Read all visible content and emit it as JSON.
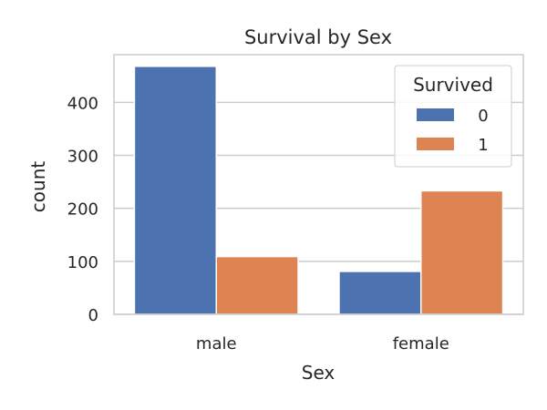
{
  "chart_data": {
    "type": "bar",
    "title": "Survival by Sex",
    "xlabel": "Sex",
    "ylabel": "count",
    "categories": [
      "male",
      "female"
    ],
    "ylim": [
      0,
      490
    ],
    "yticks": [
      0,
      100,
      200,
      300,
      400
    ],
    "grid": true,
    "legend": {
      "title": "Survived",
      "placement": "top-right"
    },
    "series": [
      {
        "name": "0",
        "color": "#4c72b0",
        "values": [
          468,
          81
        ]
      },
      {
        "name": "1",
        "color": "#dd8452",
        "values": [
          109,
          233
        ]
      }
    ]
  }
}
